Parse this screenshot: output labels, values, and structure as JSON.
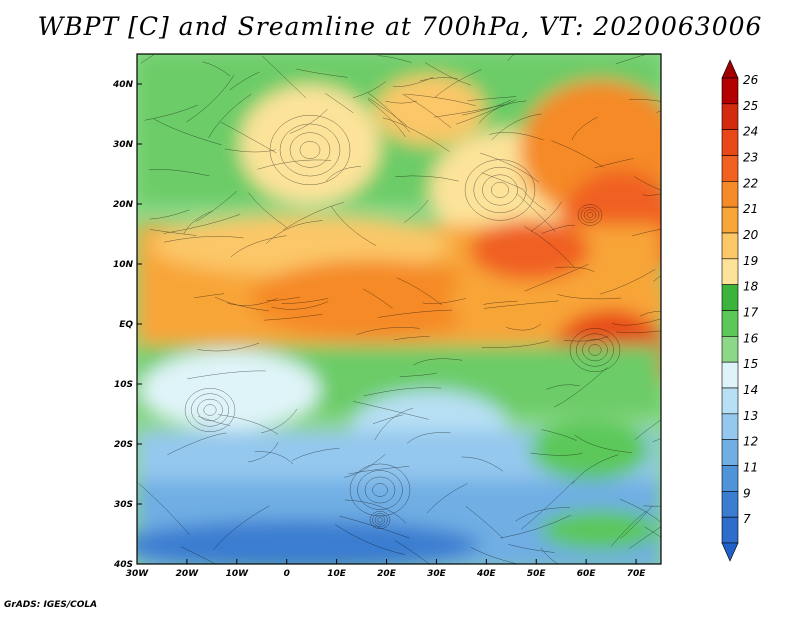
{
  "title": "WBPT [C] and Sreamline at 700hPa, VT: 2020063006",
  "footer": "GrADS: IGES/COLA",
  "map": {
    "lon_range": [
      -30,
      75
    ],
    "lat_range": [
      -40,
      45
    ],
    "lon_ticks": [
      {
        "value": -30,
        "label": "30W"
      },
      {
        "value": -20,
        "label": "20W"
      },
      {
        "value": -10,
        "label": "10W"
      },
      {
        "value": 0,
        "label": "0"
      },
      {
        "value": 10,
        "label": "10E"
      },
      {
        "value": 20,
        "label": "20E"
      },
      {
        "value": 30,
        "label": "30E"
      },
      {
        "value": 40,
        "label": "40E"
      },
      {
        "value": 50,
        "label": "50E"
      },
      {
        "value": 60,
        "label": "60E"
      },
      {
        "value": 70,
        "label": "70E"
      }
    ],
    "lat_ticks": [
      {
        "value": 40,
        "label": "40N"
      },
      {
        "value": 30,
        "label": "30N"
      },
      {
        "value": 20,
        "label": "20N"
      },
      {
        "value": 10,
        "label": "10N"
      },
      {
        "value": 0,
        "label": "EQ"
      },
      {
        "value": -10,
        "label": "10S"
      },
      {
        "value": -20,
        "label": "20S"
      },
      {
        "value": -30,
        "label": "30S"
      },
      {
        "value": -40,
        "label": "40S"
      }
    ]
  },
  "colorbar": {
    "labels": [
      "26",
      "25",
      "24",
      "23",
      "22",
      "21",
      "20",
      "19",
      "18",
      "17",
      "16",
      "15",
      "14",
      "13",
      "12",
      "11",
      "9",
      "7"
    ],
    "colors": [
      "#b30000",
      "#d42a10",
      "#e84818",
      "#f06020",
      "#f58a28",
      "#f8a538",
      "#fbc768",
      "#fde39a",
      "#3cb43c",
      "#5cc85a",
      "#8cd888",
      "#dff4f8",
      "#b8e0f4",
      "#94c8ee",
      "#70aee4",
      "#4f93d8",
      "#3a7dd0",
      "#2e6dcc"
    ],
    "top_arrow_color": "#a00000",
    "bottom_arrow_color": "#2060c8"
  }
}
